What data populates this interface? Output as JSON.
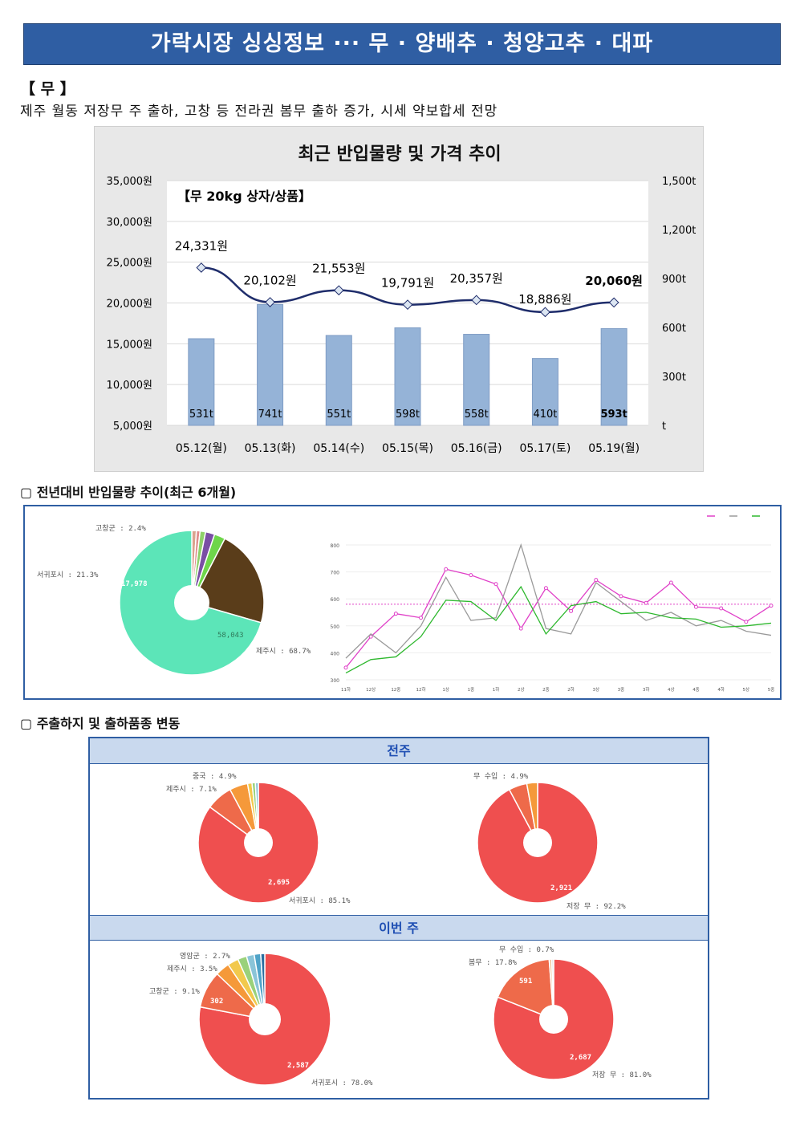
{
  "banner": {
    "title": "가락시장 싱싱정보 ··· 무 · 양배추 · 청양고추 · 대파"
  },
  "section": {
    "title": "【 무 】",
    "summary": "제주 월동 저장무 주 출하, 고창 등 전라권 봄무 출하 증가, 시세 약보합세 전망"
  },
  "chart_data": [
    {
      "type": "bar",
      "title": "최근 반입물량 및 가격 추이",
      "annotation": "【무 20kg 상자/상품】",
      "categories": [
        "05.12(월)",
        "05.13(화)",
        "05.14(수)",
        "05.15(목)",
        "05.16(금)",
        "05.17(토)",
        "05.19(월)"
      ],
      "series": [
        {
          "values": [
            531,
            741,
            551,
            598,
            558,
            410,
            593
          ],
          "unit": "t",
          "axis": "right"
        },
        {
          "values": [
            24331,
            20102,
            21553,
            19791,
            20357,
            18886,
            20060
          ],
          "unit": "원",
          "axis": "left",
          "kind": "line"
        }
      ],
      "bar_labels": [
        "531t",
        "741t",
        "551t",
        "598t",
        "558t",
        "410t",
        "593t"
      ],
      "price_labels": [
        "24,331원",
        "20,102원",
        "21,553원",
        "19,791원",
        "20,357원",
        "18,886원",
        "20,060원"
      ],
      "yticks_left": [
        "35,000원",
        "30,000원",
        "25,000원",
        "20,000원",
        "15,000원",
        "10,000원",
        "5,000원"
      ],
      "yticks_right": [
        "1,500t",
        "1,200t",
        "900t",
        "600t",
        "300t",
        "t"
      ],
      "ylim_left": [
        5000,
        35000
      ],
      "ylim_right": [
        0,
        1500
      ],
      "colors": {
        "bar": "#95b3d7",
        "line": "#1f2d6b"
      }
    },
    {
      "type": "pie",
      "labels": [
        "제주시",
        "서귀포시",
        "고창군"
      ],
      "values_pct": [
        68.7,
        21.3,
        2.4
      ],
      "inner_values": [
        "58,043",
        "17,978"
      ],
      "colors": [
        "#5ce5b8",
        "#5a3d1a",
        "#6ed64a",
        "#7a4fa5"
      ]
    },
    {
      "type": "line",
      "x": [
        "11하",
        "12상",
        "12중",
        "12하",
        "1상",
        "1중",
        "1하",
        "2상",
        "2중",
        "2하",
        "3상",
        "3중",
        "3하",
        "4상",
        "4중",
        "4하",
        "5상",
        "5중"
      ],
      "series": [
        {
          "values": [
            345,
            460,
            545,
            530,
            710,
            688,
            655,
            490,
            640,
            555,
            670,
            610,
            585,
            660,
            570,
            565,
            515,
            575
          ],
          "color": "#e040c8"
        },
        {
          "values": [
            380,
            470,
            400,
            500,
            680,
            520,
            530,
            800,
            490,
            470,
            660,
            590,
            520,
            550,
            500,
            520,
            480,
            465
          ],
          "color": "#9a9a9a"
        },
        {
          "values": [
            325,
            375,
            385,
            460,
            595,
            590,
            520,
            645,
            470,
            575,
            590,
            545,
            550,
            530,
            525,
            495,
            500,
            510
          ],
          "color": "#2eb82e"
        }
      ],
      "yticks": [
        "800",
        "700",
        "600",
        "500",
        "400",
        "300"
      ],
      "ylim": [
        300,
        800
      ],
      "reference": 580
    },
    {
      "type": "pie",
      "group": "전주",
      "labels": [
        "서귀포시",
        "제주시",
        "중국"
      ],
      "values_pct": [
        85.1,
        7.1,
        4.9
      ],
      "inner_values": [
        "2,695"
      ]
    },
    {
      "type": "pie",
      "group": "전주",
      "labels": [
        "저장 무",
        "무 수입"
      ],
      "values_pct": [
        92.2,
        4.9
      ],
      "inner_values": [
        "2,921"
      ]
    },
    {
      "type": "pie",
      "group": "이번 주",
      "labels": [
        "서귀포시",
        "고창군",
        "제주시",
        "영암군"
      ],
      "values_pct": [
        78.0,
        9.1,
        3.5,
        2.7
      ],
      "inner_values": [
        "2,587",
        "302"
      ]
    },
    {
      "type": "pie",
      "group": "이번 주",
      "labels": [
        "저장 무",
        "봄무",
        "무 수입"
      ],
      "values_pct": [
        81.0,
        17.8,
        0.7
      ],
      "inner_values": [
        "2,687",
        "591"
      ]
    }
  ],
  "sub1": "▢ 전년대비 반입물량 추이(최근 6개월)",
  "sub2": "▢ 주출하지 및 출하품종 변동",
  "group_labels": {
    "prev": "전주",
    "this": "이번 주"
  },
  "pie_labels": {
    "p1a": "고창군 : 2.4%",
    "p1b": "서귀포시 : 21.3%",
    "p1c": "제주시 : 68.7%",
    "p1v1": "17,978",
    "p1v2": "58,043",
    "p2a": "중국 : 4.9%",
    "p2b": "제주시 : 7.1%",
    "p2c": "서귀포시 : 85.1%",
    "p2v": "2,695",
    "p3a": "무 수입 : 4.9%",
    "p3b": "저장 무 : 92.2%",
    "p3v": "2,921",
    "p4a": "영암군 : 2.7%",
    "p4b": "제주시 : 3.5%",
    "p4c": "고창군 : 9.1%",
    "p4d": "서귀포시 : 78.0%",
    "p4v1": "302",
    "p4v2": "2,587",
    "p5a": "무 수입 : 0.7%",
    "p5b": "봄무 : 17.8%",
    "p5c": "저장 무 : 81.0%",
    "p5v1": "591",
    "p5v2": "2,687"
  }
}
